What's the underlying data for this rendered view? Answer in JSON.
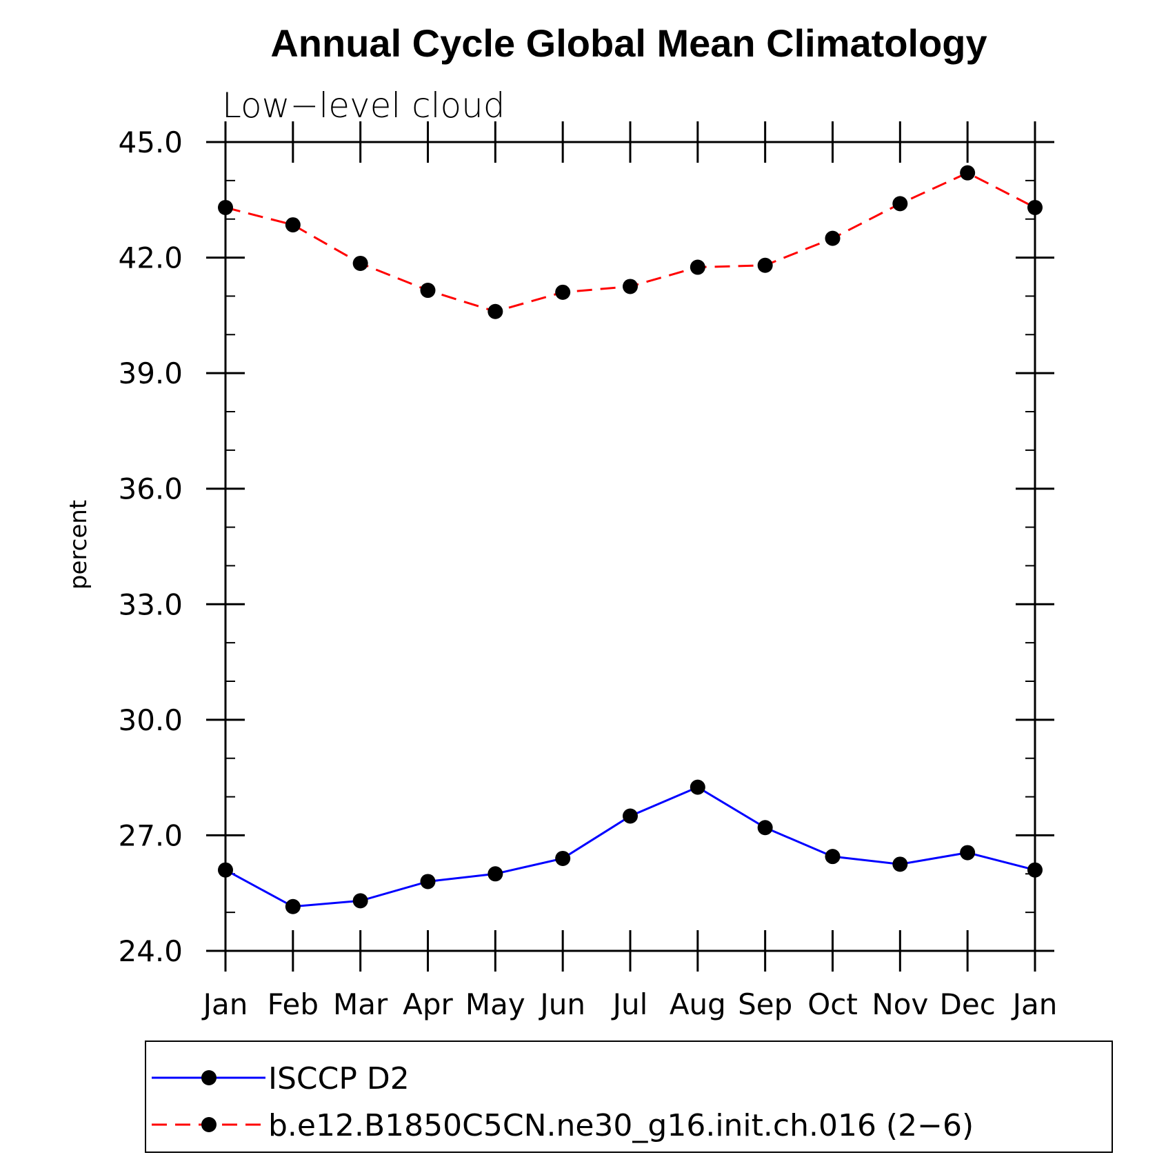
{
  "chart_data": {
    "type": "line",
    "title": "Annual Cycle Global Mean Climatology",
    "subtitle": "Low−level cloud",
    "ylabel": "percent",
    "xlabel": "",
    "categories": [
      "Jan",
      "Feb",
      "Mar",
      "Apr",
      "May",
      "Jun",
      "Jul",
      "Aug",
      "Sep",
      "Oct",
      "Nov",
      "Dec",
      "Jan"
    ],
    "ylim": [
      24.0,
      45.0
    ],
    "yticks": [
      {
        "value": 24.0,
        "label": "24.0"
      },
      {
        "value": 27.0,
        "label": "27.0"
      },
      {
        "value": 30.0,
        "label": "30.0"
      },
      {
        "value": 33.0,
        "label": "33.0"
      },
      {
        "value": 36.0,
        "label": "36.0"
      },
      {
        "value": 39.0,
        "label": "39.0"
      },
      {
        "value": 42.0,
        "label": "42.0"
      },
      {
        "value": 45.0,
        "label": "45.0"
      }
    ],
    "yminor_step": 1.0,
    "grid": false,
    "legend_position": "bottom",
    "series": [
      {
        "name": "ISCCP D2",
        "color": "#0000ff",
        "dash": "solid",
        "values": [
          26.1,
          25.15,
          25.3,
          25.8,
          26.0,
          26.4,
          27.5,
          28.25,
          27.2,
          26.45,
          26.25,
          26.55,
          26.1
        ]
      },
      {
        "name": "b.e12.B1850C5CN.ne30_g16.init.ch.016 (2−6)",
        "color": "#ff0000",
        "dash": "dashed",
        "values": [
          43.3,
          42.85,
          41.85,
          41.15,
          40.6,
          41.1,
          41.25,
          41.75,
          41.8,
          42.5,
          43.4,
          44.2,
          43.3
        ]
      }
    ]
  }
}
